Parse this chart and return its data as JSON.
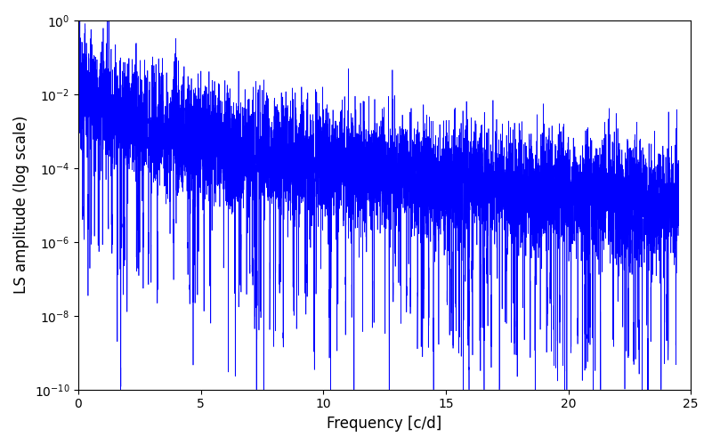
{
  "title": "",
  "xlabel": "Frequency [c/d]",
  "ylabel": "LS amplitude (log scale)",
  "xlim": [
    0,
    25
  ],
  "ylim": [
    1e-10,
    1
  ],
  "yscale": "log",
  "line_color": "#0000FF",
  "line_width": 0.5,
  "freq_max": 24.5,
  "n_points": 8000,
  "peak_amplitude": 0.3,
  "seed": 12345,
  "figsize": [
    8.0,
    5.0
  ],
  "dpi": 100
}
